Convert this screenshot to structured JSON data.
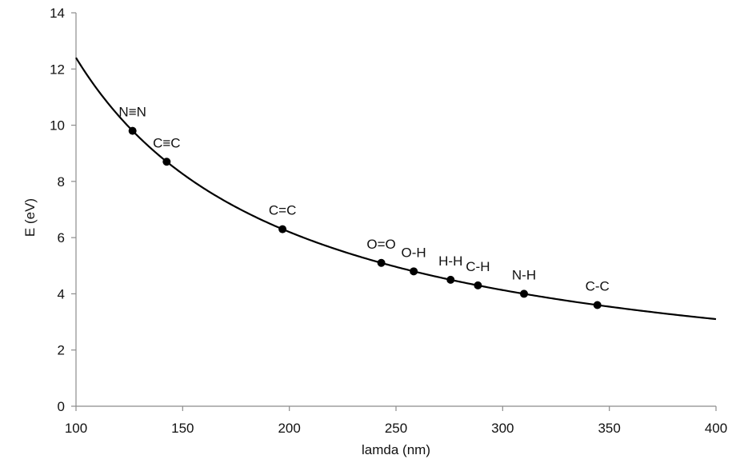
{
  "chart_data": {
    "type": "scatter",
    "title": "",
    "xlabel": "lamda (nm)",
    "ylabel": "E (eV)",
    "xlim": [
      100,
      400
    ],
    "ylim": [
      0,
      14
    ],
    "x_ticks": [
      100,
      150,
      200,
      250,
      300,
      350,
      400
    ],
    "y_ticks": [
      0,
      2,
      4,
      6,
      8,
      10,
      12,
      14
    ],
    "grid": false,
    "legend": "none",
    "curve": {
      "type": "line",
      "equation": "E = 1240 / lamda",
      "x_range": [
        100,
        400
      ]
    },
    "points": [
      {
        "label": "N≡N",
        "x": 126.5,
        "y": 9.8
      },
      {
        "label": "C≡C",
        "x": 142.5,
        "y": 8.7
      },
      {
        "label": "C=C",
        "x": 196.8,
        "y": 6.3
      },
      {
        "label": "O=O",
        "x": 243.1,
        "y": 5.1
      },
      {
        "label": "O-H",
        "x": 258.3,
        "y": 4.8
      },
      {
        "label": "H-H",
        "x": 275.6,
        "y": 4.5
      },
      {
        "label": "C-H",
        "x": 288.4,
        "y": 4.3
      },
      {
        "label": "N-H",
        "x": 310.0,
        "y": 4.0
      },
      {
        "label": "C-C",
        "x": 344.4,
        "y": 3.6
      }
    ],
    "colors": {
      "curve": "#000000",
      "marker": "#000000",
      "axis": "#8c8c8c"
    }
  }
}
